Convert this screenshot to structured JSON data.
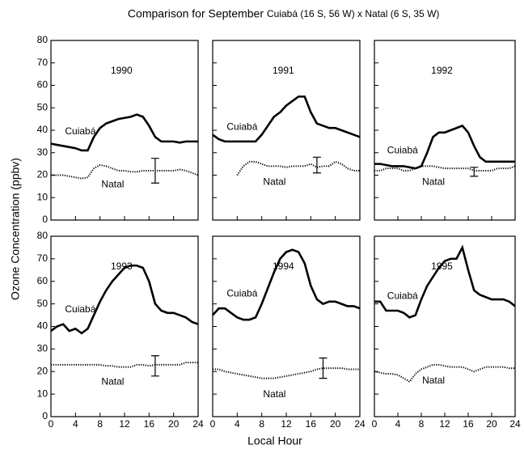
{
  "title_main": "Comparison for September",
  "title_sites": "Cuiabá (16 S, 56 W) x Natal (6 S, 35 W)",
  "x_label": "Local Hour",
  "y_label": "Ozone Concentration (ppbv)",
  "chart_data": [
    {
      "type": "line",
      "title": "1990",
      "xtick_labels": false,
      "ytick_labels": true,
      "xlim": [
        0,
        24
      ],
      "ylim": [
        0,
        80
      ],
      "xticks": [
        0,
        4,
        8,
        12,
        16,
        20,
        24
      ],
      "yticks": [
        0,
        10,
        20,
        30,
        40,
        50,
        60,
        70,
        80
      ],
      "x": [
        0,
        1,
        2,
        3,
        4,
        5,
        6,
        7,
        8,
        9,
        10,
        11,
        12,
        13,
        14,
        15,
        16,
        17,
        18,
        19,
        20,
        21,
        22,
        23,
        24
      ],
      "series": [
        {
          "name": "Cuiabá",
          "color": "#000000",
          "line_style": "solid",
          "values": [
            34,
            33.5,
            33,
            32.5,
            32,
            31,
            31,
            37,
            41,
            43,
            44,
            45,
            45.5,
            46,
            47,
            46,
            42,
            37,
            35,
            35,
            35,
            34.5,
            35,
            35,
            35
          ]
        },
        {
          "name": "Natal",
          "color": "#000000",
          "line_style": "dotted",
          "values": [
            20,
            20,
            20,
            19.5,
            19,
            18.5,
            19,
            23,
            24.5,
            24,
            23,
            22,
            22,
            21.5,
            21.5,
            22,
            22,
            22,
            22,
            22,
            22,
            22.5,
            22,
            21,
            20
          ]
        }
      ],
      "error_bar": {
        "x": 17,
        "y": 22,
        "error": 5.5
      }
    },
    {
      "type": "line",
      "title": "1991",
      "xtick_labels": false,
      "ytick_labels": false,
      "xlim": [
        0,
        24
      ],
      "ylim": [
        0,
        80
      ],
      "xticks": [
        0,
        4,
        8,
        12,
        16,
        20,
        24
      ],
      "yticks": [
        0,
        10,
        20,
        30,
        40,
        50,
        60,
        70,
        80
      ],
      "x": [
        0,
        1,
        2,
        3,
        4,
        5,
        6,
        7,
        8,
        9,
        10,
        11,
        12,
        13,
        14,
        15,
        16,
        17,
        18,
        19,
        20,
        21,
        22,
        23,
        24
      ],
      "series": [
        {
          "name": "Cuiabá",
          "color": "#000000",
          "line_style": "solid",
          "values": [
            38,
            36,
            35,
            35,
            35,
            35,
            35,
            35,
            38,
            42,
            46,
            48,
            51,
            53,
            55,
            55,
            48,
            43,
            42,
            41,
            41,
            40,
            39,
            38,
            37
          ]
        },
        {
          "name": "Natal",
          "color": "#000000",
          "line_style": "dotted",
          "values": [
            null,
            null,
            null,
            null,
            20,
            24,
            26,
            26,
            25,
            24,
            24,
            24,
            23.5,
            24,
            24,
            24,
            25,
            23.5,
            24,
            24,
            26,
            25,
            23,
            22,
            22
          ]
        }
      ],
      "error_bar": {
        "x": 17,
        "y": 24.5,
        "error": 3.5
      }
    },
    {
      "type": "line",
      "title": "1992",
      "xtick_labels": false,
      "ytick_labels": false,
      "xlim": [
        0,
        24
      ],
      "ylim": [
        0,
        80
      ],
      "xticks": [
        0,
        4,
        8,
        12,
        16,
        20,
        24
      ],
      "yticks": [
        0,
        10,
        20,
        30,
        40,
        50,
        60,
        70,
        80
      ],
      "x": [
        0,
        1,
        2,
        3,
        4,
        5,
        6,
        7,
        8,
        9,
        10,
        11,
        12,
        13,
        14,
        15,
        16,
        17,
        18,
        19,
        20,
        21,
        22,
        23,
        24
      ],
      "series": [
        {
          "name": "Cuiabá",
          "color": "#000000",
          "line_style": "solid",
          "values": [
            25,
            25,
            24.5,
            24,
            24,
            24,
            23.5,
            23,
            24,
            30,
            37,
            39,
            39,
            40,
            41,
            42,
            39,
            33,
            28,
            26,
            26,
            26,
            26,
            26,
            26
          ]
        },
        {
          "name": "Natal",
          "color": "#000000",
          "line_style": "dotted",
          "values": [
            22,
            22,
            23,
            23,
            23,
            22,
            22,
            23,
            24,
            24,
            24,
            23.5,
            23,
            23,
            23,
            23,
            23,
            22,
            22,
            22,
            22,
            23,
            23,
            23,
            24
          ]
        }
      ],
      "error_bar": {
        "x": 17,
        "y": 21.5,
        "error": 2
      }
    },
    {
      "type": "line",
      "title": "1993",
      "xtick_labels": true,
      "ytick_labels": true,
      "xlim": [
        0,
        24
      ],
      "ylim": [
        0,
        80
      ],
      "xticks": [
        0,
        4,
        8,
        12,
        16,
        20,
        24
      ],
      "yticks": [
        0,
        10,
        20,
        30,
        40,
        50,
        60,
        70,
        80
      ],
      "x": [
        0,
        1,
        2,
        3,
        4,
        5,
        6,
        7,
        8,
        9,
        10,
        11,
        12,
        13,
        14,
        15,
        16,
        17,
        18,
        19,
        20,
        21,
        22,
        23,
        24
      ],
      "series": [
        {
          "name": "Cuiabá",
          "color": "#000000",
          "line_style": "solid",
          "values": [
            38,
            40,
            41,
            38,
            39,
            37,
            39,
            45,
            51,
            56,
            60,
            63,
            66,
            67,
            67,
            66,
            60,
            50,
            47,
            46,
            46,
            45,
            44,
            42,
            41
          ]
        },
        {
          "name": "Natal",
          "color": "#000000",
          "line_style": "dotted",
          "values": [
            23,
            23,
            23,
            23,
            23,
            23,
            23,
            23,
            23,
            22.5,
            22.5,
            22,
            22,
            22,
            23,
            23,
            22.5,
            23,
            23,
            23,
            23,
            23,
            24,
            24,
            24
          ]
        }
      ],
      "error_bar": {
        "x": 17,
        "y": 22.5,
        "error": 4.5
      }
    },
    {
      "type": "line",
      "title": "1994",
      "xtick_labels": true,
      "ytick_labels": false,
      "xlim": [
        0,
        24
      ],
      "ylim": [
        0,
        80
      ],
      "xticks": [
        0,
        4,
        8,
        12,
        16,
        20,
        24
      ],
      "yticks": [
        0,
        10,
        20,
        30,
        40,
        50,
        60,
        70,
        80
      ],
      "x": [
        0,
        1,
        2,
        3,
        4,
        5,
        6,
        7,
        8,
        9,
        10,
        11,
        12,
        13,
        14,
        15,
        16,
        17,
        18,
        19,
        20,
        21,
        22,
        23,
        24
      ],
      "series": [
        {
          "name": "Cuiabá",
          "color": "#000000",
          "line_style": "solid",
          "values": [
            45,
            48,
            48,
            46,
            44,
            43,
            43,
            44,
            50,
            57,
            64,
            70,
            73,
            74,
            73,
            68,
            58,
            52,
            50,
            51,
            51,
            50,
            49,
            49,
            48
          ]
        },
        {
          "name": "Natal",
          "color": "#000000",
          "line_style": "dotted",
          "values": [
            21,
            21,
            20,
            19.5,
            19,
            18.5,
            18,
            17.5,
            17,
            17,
            17,
            17.5,
            18,
            18.5,
            19,
            19.5,
            20,
            21,
            21.5,
            21.5,
            21.5,
            21.5,
            21,
            21,
            21
          ]
        }
      ],
      "error_bar": {
        "x": 18,
        "y": 21.5,
        "error": 4.5
      }
    },
    {
      "type": "line",
      "title": "1995",
      "xtick_labels": true,
      "ytick_labels": false,
      "xlim": [
        0,
        24
      ],
      "ylim": [
        0,
        80
      ],
      "xticks": [
        0,
        4,
        8,
        12,
        16,
        20,
        24
      ],
      "yticks": [
        0,
        10,
        20,
        30,
        40,
        50,
        60,
        70,
        80
      ],
      "x": [
        0,
        1,
        2,
        3,
        4,
        5,
        6,
        7,
        8,
        9,
        10,
        11,
        12,
        13,
        14,
        15,
        16,
        17,
        18,
        19,
        20,
        21,
        22,
        23,
        24
      ],
      "series": [
        {
          "name": "Cuiabá",
          "color": "#000000",
          "line_style": "solid",
          "values": [
            51,
            51,
            47,
            47,
            47,
            46,
            44,
            45,
            52,
            58,
            62,
            66,
            69,
            70,
            70,
            75,
            65,
            56,
            54,
            53,
            52,
            52,
            52,
            51,
            49
          ]
        },
        {
          "name": "Natal",
          "color": "#000000",
          "line_style": "dotted",
          "values": [
            20,
            19.5,
            19,
            19,
            18.5,
            17,
            15.5,
            19,
            21,
            22,
            23,
            23,
            22.5,
            22,
            22,
            22,
            21,
            20,
            21,
            22,
            22,
            22,
            22,
            21.5,
            21.5
          ]
        }
      ]
    }
  ]
}
